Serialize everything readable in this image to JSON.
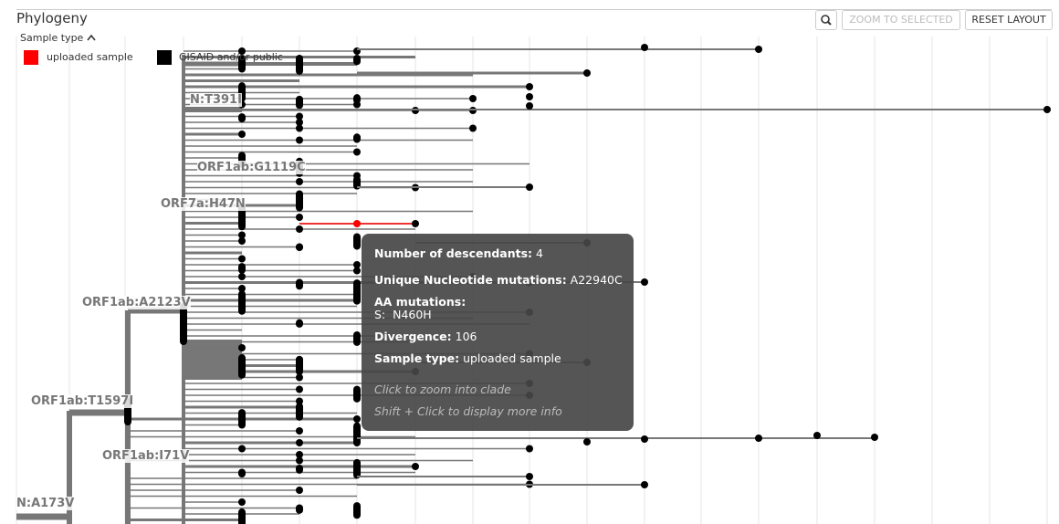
{
  "header": {
    "title": "Phylogeny",
    "buttons": [
      "ZOOM TO SELECTED",
      "RESET LAYOUT"
    ]
  },
  "legend": {
    "title": "Sample type",
    "items": [
      {
        "label": "uploaded sample",
        "color": "#ff0000"
      },
      {
        "label": "GISAID and/or public",
        "color": "#000000"
      }
    ]
  },
  "branch_labels": [
    "N:T391I",
    "ORF1ab:G1119C",
    "ORF7a:H47N",
    "ORF1ab:A2123V",
    "ORF1ab:T1597I",
    "ORF1ab:I71V",
    "N:A173V"
  ],
  "tooltip": {
    "descendants": {
      "label": "Number of descendants:",
      "value": 4
    },
    "nuc_mutations": {
      "label": "Unique Nucleotide mutations:",
      "value": "A22940C"
    },
    "aa_mutations": {
      "label": "AA mutations:",
      "value": "S:  N460H"
    },
    "divergence": {
      "label": "Divergence:",
      "value": 106
    },
    "sample_type": {
      "label": "Sample type:",
      "value": "uploaded sample"
    },
    "hints": [
      "Click to zoom into clade",
      "Shift + Click to display more info"
    ]
  }
}
